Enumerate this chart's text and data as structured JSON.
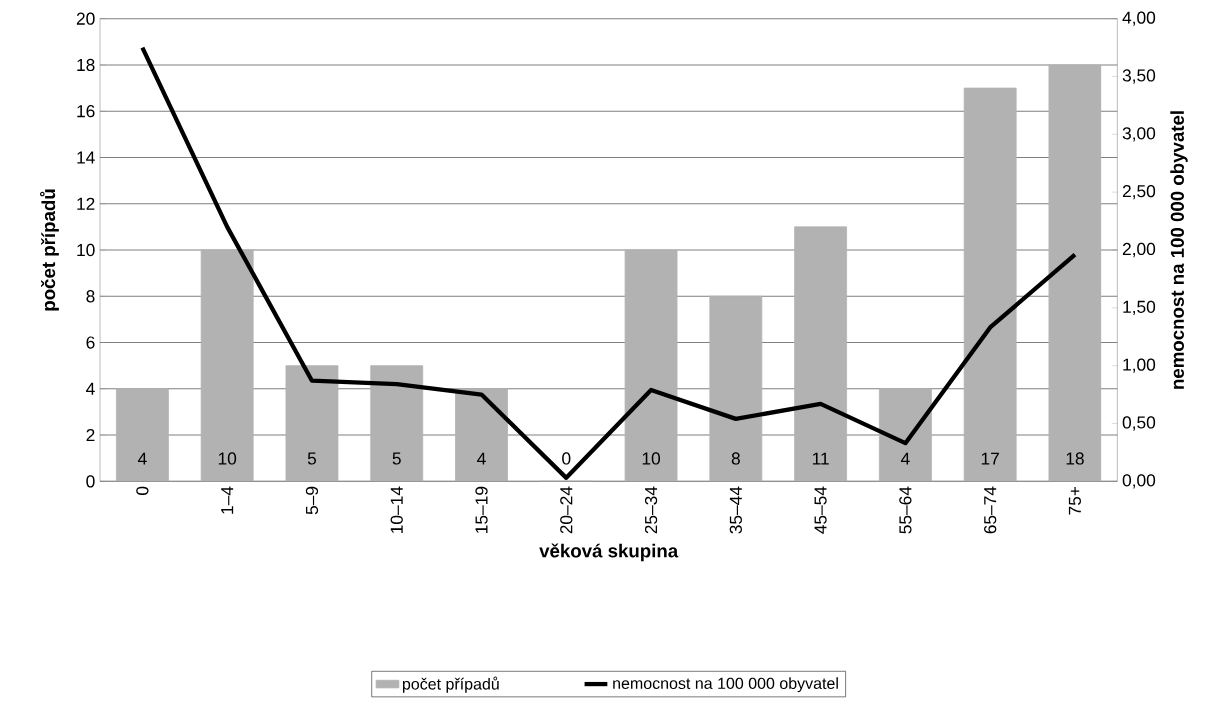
{
  "chart_data": {
    "type": "bar",
    "xlabel": "věková skupina",
    "ylabel": "počet případů",
    "y2label": "nemocnost na 100 000 obyvatel",
    "categories": [
      "0",
      "1–4",
      "5–9",
      "10–14",
      "15–19",
      "20–24",
      "25–34",
      "35–44",
      "45–54",
      "55–64",
      "65–74",
      "75+"
    ],
    "series": [
      {
        "name": "počet případů",
        "color": "#b2b2b2",
        "values": [
          4,
          10,
          5,
          5,
          4,
          0,
          10,
          8,
          11,
          4,
          17,
          18
        ],
        "value_labels": [
          "4",
          "10",
          "5",
          "5",
          "4",
          "0",
          "10",
          "8",
          "11",
          "4",
          "17",
          "18"
        ]
      },
      {
        "name": "nemocnost na 100 000 obyvatel",
        "type": "line",
        "axis": "y2",
        "color": "#000000",
        "values": [
          3.75,
          2.2,
          0.87,
          0.84,
          0.75,
          0.03,
          0.79,
          0.54,
          0.67,
          0.33,
          1.33,
          1.96
        ]
      }
    ],
    "ylim": [
      0,
      20
    ],
    "yticks": [
      0,
      2,
      4,
      6,
      8,
      10,
      12,
      14,
      16,
      18,
      20
    ],
    "y2lim": [
      0,
      4
    ],
    "y2ticks": [
      {
        "value": 0,
        "label": "0,00"
      },
      {
        "value": 0.5,
        "label": "0,50"
      },
      {
        "value": 1,
        "label": "1,00"
      },
      {
        "value": 1.5,
        "label": "1,50"
      },
      {
        "value": 2,
        "label": "2,00"
      },
      {
        "value": 2.5,
        "label": "2,50"
      },
      {
        "value": 3,
        "label": "3,00"
      },
      {
        "value": 3.5,
        "label": "3,50"
      },
      {
        "value": 4,
        "label": "4,00"
      }
    ],
    "grid": "y",
    "legend": "bottom"
  }
}
